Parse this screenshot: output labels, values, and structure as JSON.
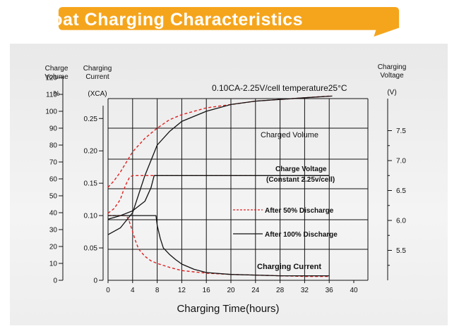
{
  "title": "Float Charging Characteristics",
  "colors": {
    "banner": "#f5a51c",
    "series_dashed": "#e02020",
    "series_solid": "#111111",
    "grid": "#111111"
  },
  "chart_data": {
    "type": "line",
    "title": "Float Charging Characteristics",
    "subtitle": "0.10CA-2.25V/cell  temperature25°C",
    "xlabel": "Charging Time(hours)",
    "xticks": [
      0,
      4,
      8,
      12,
      16,
      20,
      24,
      28,
      32,
      36,
      40
    ],
    "xlim": [
      0,
      40
    ],
    "grid": true,
    "axes": {
      "volume": {
        "label_lines": [
          "Charge",
          "Volume"
        ],
        "unit": "%",
        "ticks": [
          0,
          10,
          20,
          30,
          40,
          50,
          60,
          70,
          80,
          90,
          100,
          110,
          120
        ],
        "range": [
          0,
          120
        ]
      },
      "current": {
        "label_lines": [
          "Charging",
          "Current"
        ],
        "unit": "(XCA)",
        "ticks": [
          "0",
          "0.05",
          "0.10",
          "0.15",
          "0.20",
          "0.25"
        ],
        "range": [
          0,
          0.25
        ]
      },
      "voltage": {
        "label_lines": [
          "Charging",
          "Voltage"
        ],
        "unit": "(V)",
        "ticks": [
          "5.5",
          "6.0",
          "6.5",
          "7.0",
          "7.5"
        ],
        "range": [
          5.0,
          7.75
        ]
      }
    },
    "legend": [
      {
        "label": "After 50% Discharge",
        "style": "dashed"
      },
      {
        "label": "After 100% Discharge",
        "style": "solid"
      }
    ],
    "annotations": {
      "charged_volume": "Charged Volume",
      "charge_voltage": "Charge Voltage",
      "charge_voltage_note": "(Constant 2.25v/cell)",
      "charging_current": "Charging Current"
    },
    "series": [
      {
        "name": "After 50% Discharge",
        "quantity": "Charged Volume",
        "axis": "volume",
        "style": "dashed",
        "x": [
          0,
          1,
          2,
          3,
          4,
          6,
          8,
          10,
          12,
          16,
          20,
          24,
          28,
          32,
          36
        ],
        "y": [
          55,
          59,
          64,
          70,
          76,
          84,
          90,
          95,
          98,
          102,
          104,
          106,
          107,
          108,
          109
        ]
      },
      {
        "name": "After 100% Discharge",
        "quantity": "Charged Volume",
        "axis": "volume",
        "style": "solid",
        "x": [
          0,
          2,
          4,
          6,
          8,
          10,
          12,
          16,
          20,
          24,
          28,
          32,
          36.5
        ],
        "y": [
          27,
          31,
          40,
          62,
          80,
          88,
          94,
          100,
          104,
          106,
          107,
          108,
          109
        ]
      },
      {
        "name": "After 50% Discharge",
        "quantity": "Charge Voltage",
        "axis": "voltage",
        "style": "dashed",
        "x": [
          0,
          1,
          2,
          2.5,
          3,
          3.5,
          4,
          8,
          12,
          16,
          20,
          24
        ],
        "y": [
          6.12,
          6.2,
          6.35,
          6.5,
          6.62,
          6.72,
          6.75,
          6.75,
          6.75,
          6.75,
          6.75,
          6.75
        ]
      },
      {
        "name": "After 100% Discharge",
        "quantity": "Charge Voltage",
        "axis": "voltage",
        "style": "solid",
        "x": [
          0,
          2,
          4,
          6,
          7,
          7.5,
          8,
          12,
          20,
          28,
          36
        ],
        "y": [
          6.02,
          6.08,
          6.16,
          6.32,
          6.55,
          6.75,
          6.75,
          6.75,
          6.75,
          6.75,
          6.75
        ]
      },
      {
        "name": "After 50% Discharge",
        "quantity": "Charging Current",
        "axis": "current",
        "style": "dashed",
        "x": [
          0,
          3,
          3.5,
          4,
          4.5,
          5,
          6,
          7,
          8,
          10,
          12,
          16,
          20,
          24,
          28,
          32,
          36
        ],
        "y": [
          0.1,
          0.1,
          0.09,
          0.075,
          0.06,
          0.048,
          0.037,
          0.03,
          0.026,
          0.02,
          0.015,
          0.011,
          0.009,
          0.008,
          0.007,
          0.006,
          0.006
        ]
      },
      {
        "name": "After 100% Discharge",
        "quantity": "Charging Current",
        "axis": "current",
        "style": "solid",
        "x": [
          0,
          7.5,
          7.8,
          8,
          8.5,
          9,
          10,
          11,
          12,
          14,
          16,
          20,
          24,
          28,
          32,
          36
        ],
        "y": [
          0.1,
          0.1,
          0.1,
          0.085,
          0.065,
          0.05,
          0.04,
          0.032,
          0.025,
          0.017,
          0.012,
          0.009,
          0.008,
          0.007,
          0.007,
          0.007
        ]
      }
    ]
  }
}
